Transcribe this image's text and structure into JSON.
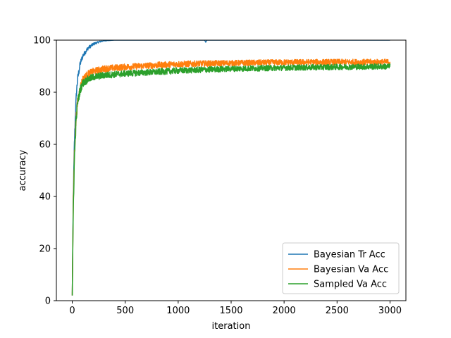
{
  "chart_data": {
    "type": "line",
    "title": "",
    "xlabel": "iteration",
    "ylabel": "accuracy",
    "xlim": [
      -150,
      3150
    ],
    "ylim": [
      0,
      100
    ],
    "xticks": [
      0,
      500,
      1000,
      1500,
      2000,
      2500,
      3000
    ],
    "yticks": [
      0,
      20,
      40,
      60,
      80,
      100
    ],
    "grid": false,
    "legend_position": "lower-right",
    "series": [
      {
        "name": "Bayesian Tr Acc",
        "color": "#1f77b4",
        "x": [
          0,
          10,
          20,
          30,
          40,
          50,
          75,
          100,
          150,
          200,
          250,
          300,
          400,
          500,
          1000,
          1250,
          1260,
          1270,
          1500,
          2000,
          2500,
          3000
        ],
        "y": [
          2,
          40,
          60,
          72,
          80,
          85,
          91,
          94,
          97,
          98.5,
          99.3,
          99.8,
          100,
          100,
          100,
          100,
          99.2,
          100,
          100,
          100,
          100,
          100
        ],
        "noise": [
          0,
          2,
          2,
          2,
          1.6,
          1.4,
          1.1,
          0.9,
          0.7,
          0.5,
          0.3,
          0.15,
          0,
          0,
          0,
          0,
          0,
          0,
          0,
          0,
          0,
          0
        ]
      },
      {
        "name": "Bayesian Va Acc",
        "color": "#ff7f0e",
        "x": [
          0,
          10,
          20,
          30,
          40,
          50,
          75,
          100,
          150,
          200,
          300,
          500,
          800,
          1000,
          1500,
          2000,
          2500,
          3000
        ],
        "y": [
          2,
          38,
          56,
          66,
          72,
          76,
          82,
          85,
          87,
          88,
          89,
          89.7,
          90.4,
          90.8,
          91.2,
          91.5,
          91.6,
          91.6
        ],
        "noise": [
          0,
          2.5,
          2.5,
          2.2,
          2,
          1.8,
          1.6,
          1.5,
          1.4,
          1.3,
          1.3,
          1.2,
          1.2,
          1.2,
          1.1,
          1.1,
          1.1,
          1.1
        ]
      },
      {
        "name": "Sampled Va Acc",
        "color": "#2ca02c",
        "x": [
          0,
          10,
          20,
          30,
          40,
          50,
          75,
          100,
          150,
          200,
          300,
          500,
          800,
          1000,
          1500,
          2000,
          2500,
          3000
        ],
        "y": [
          2,
          36,
          54,
          64,
          71,
          76,
          81,
          83.5,
          85,
          85.8,
          86.5,
          87.2,
          87.8,
          88.3,
          89,
          89.4,
          89.7,
          89.9
        ],
        "noise": [
          0,
          2.5,
          2.5,
          2.2,
          2,
          1.8,
          1.6,
          1.5,
          1.4,
          1.3,
          1.3,
          1.2,
          1.2,
          1.2,
          1.1,
          1.1,
          1.1,
          1.1
        ]
      }
    ]
  }
}
